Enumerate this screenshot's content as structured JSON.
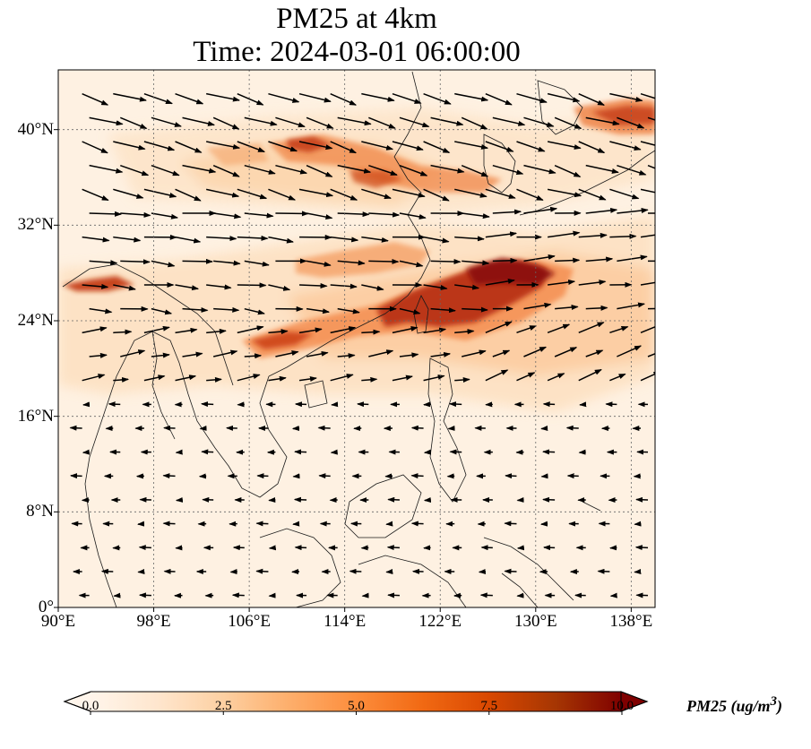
{
  "title_line1": "PM25 at 4km",
  "title_line2": "Time: 2024-03-01 06:00:00",
  "map": {
    "extent": {
      "lon": [
        90,
        140
      ],
      "lat": [
        0,
        45
      ]
    },
    "lat_ticks": [
      0,
      8,
      16,
      24,
      32,
      40
    ],
    "lat_labels": [
      "0°",
      "8°N",
      "16°N",
      "24°N",
      "32°N",
      "40°N"
    ],
    "lon_ticks": [
      90,
      98,
      106,
      114,
      122,
      130,
      138
    ],
    "lon_labels": [
      "90°E",
      "98°E",
      "106°E",
      "114°E",
      "122°E",
      "130°E",
      "138°E"
    ],
    "gridlines": "dotted",
    "field": "PM25",
    "wind_vectors": "westerly north of ~18°N, weak easterly south",
    "hotspots": [
      {
        "region": "Northern China belt",
        "lon": [
          108,
          125
        ],
        "lat": [
          36,
          39
        ],
        "value": 6
      },
      {
        "region": "Yangtze to Taiwan",
        "lon": [
          106,
          124
        ],
        "lat": [
          22,
          27
        ],
        "value": 7
      },
      {
        "region": "East China Sea",
        "lon": [
          124,
          133
        ],
        "lat": [
          23,
          28
        ],
        "value": 8.5
      },
      {
        "region": "Northern Myanmar",
        "lon": [
          92,
          97
        ],
        "lat": [
          26,
          27.5
        ],
        "value": 7.5
      },
      {
        "region": "Sea of Japan",
        "lon": [
          133,
          140
        ],
        "lat": [
          40,
          42
        ],
        "value": 6
      }
    ]
  },
  "colorbar": {
    "min": 0.0,
    "max": 10.0,
    "ticks": [
      "0.0",
      "2.5",
      "5.0",
      "7.5",
      "10.0"
    ],
    "label_text": "PM25 (ug/m",
    "label_sup": "3",
    "label_end": ")",
    "extend": "both",
    "colormap": [
      "#fff5eb",
      "#fee6ce",
      "#fdd0a2",
      "#fdae6b",
      "#fd8d3c",
      "#f16913",
      "#d94801",
      "#a63603",
      "#7f0000"
    ]
  }
}
